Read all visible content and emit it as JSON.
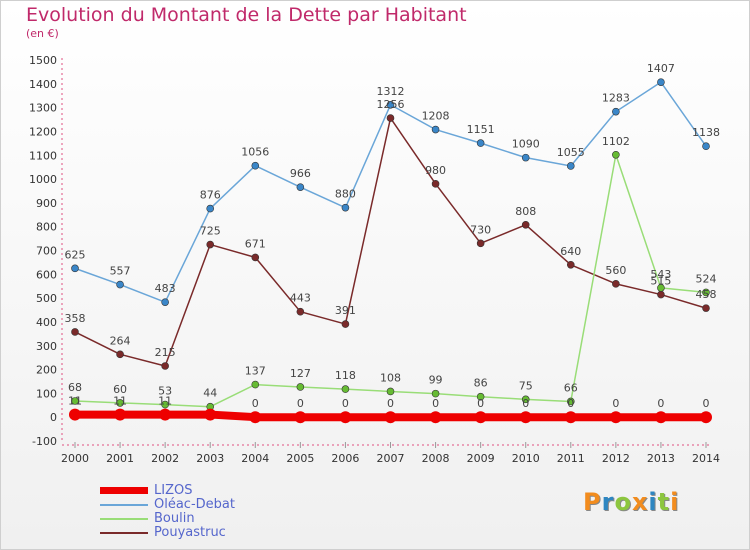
{
  "header": {
    "title": "Evolution du Montant de la Dette par Habitant",
    "subtitle": "(en €)"
  },
  "logo": {
    "letters": [
      "P",
      "r",
      "o",
      "x",
      "i",
      "t",
      "i"
    ],
    "colors": [
      "#f28c1e",
      "#2e86c1",
      "#8dc63f",
      "#f28c1e",
      "#2e86c1",
      "#8dc63f",
      "#f28c1e"
    ]
  },
  "chart_data": {
    "type": "line",
    "title": "Evolution du Montant de la Dette par Habitant",
    "subtitle": "(en €)",
    "x": [
      "2000",
      "2001",
      "2002",
      "2003",
      "2004",
      "2005",
      "2006",
      "2007",
      "2008",
      "2009",
      "2010",
      "2011",
      "2012",
      "2013",
      "2014"
    ],
    "yticks": [
      -100,
      0,
      100,
      200,
      300,
      400,
      500,
      600,
      700,
      800,
      900,
      1000,
      1100,
      1200,
      1300,
      1400,
      1500
    ],
    "ylim": [
      -100,
      1500
    ],
    "grid": false,
    "legend_position": "bottom-left",
    "series": [
      {
        "name": "Oléac-Debat",
        "color": "#6aa6d8",
        "dot": "#3a86c8",
        "width": 1.5,
        "values": [
          625,
          557,
          483,
          876,
          1056,
          966,
          880,
          1312,
          1208,
          1151,
          1090,
          1055,
          1283,
          1407,
          1138
        ],
        "labels": [
          "625",
          "557",
          "483",
          "876",
          "1056",
          "966",
          "880",
          "1312",
          "1208",
          "1151",
          "1090",
          "1055",
          "1283",
          "1407",
          "1138"
        ]
      },
      {
        "name": "Pouyastruc",
        "color": "#7a2a2a",
        "dot": "#7a2a2a",
        "width": 1.5,
        "values": [
          358,
          264,
          215,
          725,
          671,
          443,
          391,
          1256,
          980,
          730,
          808,
          640,
          560,
          515,
          458
        ],
        "labels": [
          "358",
          "264",
          "215",
          "725",
          "671",
          "443",
          "391",
          "1256",
          "980",
          "730",
          "808",
          "640",
          "560",
          "515",
          "458"
        ]
      },
      {
        "name": "Boulin",
        "color": "#99dd77",
        "dot": "#66bb33",
        "width": 1.5,
        "values": [
          68,
          60,
          53,
          44,
          137,
          127,
          118,
          108,
          99,
          86,
          75,
          66,
          1102,
          543,
          524
        ],
        "labels": [
          "68",
          "60",
          "53",
          "44",
          "137",
          "127",
          "118",
          "108",
          "99",
          "86",
          "75",
          "66",
          "1102",
          "543",
          "524"
        ]
      },
      {
        "name": "LIZOS",
        "color": "#ee0000",
        "dot": "#ee0000",
        "width": 8,
        "values": [
          11,
          11,
          11,
          11,
          0,
          0,
          0,
          0,
          0,
          0,
          0,
          0,
          0,
          0,
          0
        ],
        "labels": [
          "11",
          "11",
          "11",
          "",
          "0",
          "0",
          "0",
          "0",
          "0",
          "0",
          "0",
          "0",
          "0",
          "0",
          "0"
        ]
      }
    ],
    "legend": [
      {
        "name": "LIZOS",
        "color": "#ee0000",
        "thickness": 7
      },
      {
        "name": "Oléac-Debat",
        "color": "#6aa6d8",
        "thickness": 2
      },
      {
        "name": "Boulin",
        "color": "#99dd77",
        "thickness": 2
      },
      {
        "name": "Pouyastruc",
        "color": "#7a2a2a",
        "thickness": 2
      }
    ]
  }
}
